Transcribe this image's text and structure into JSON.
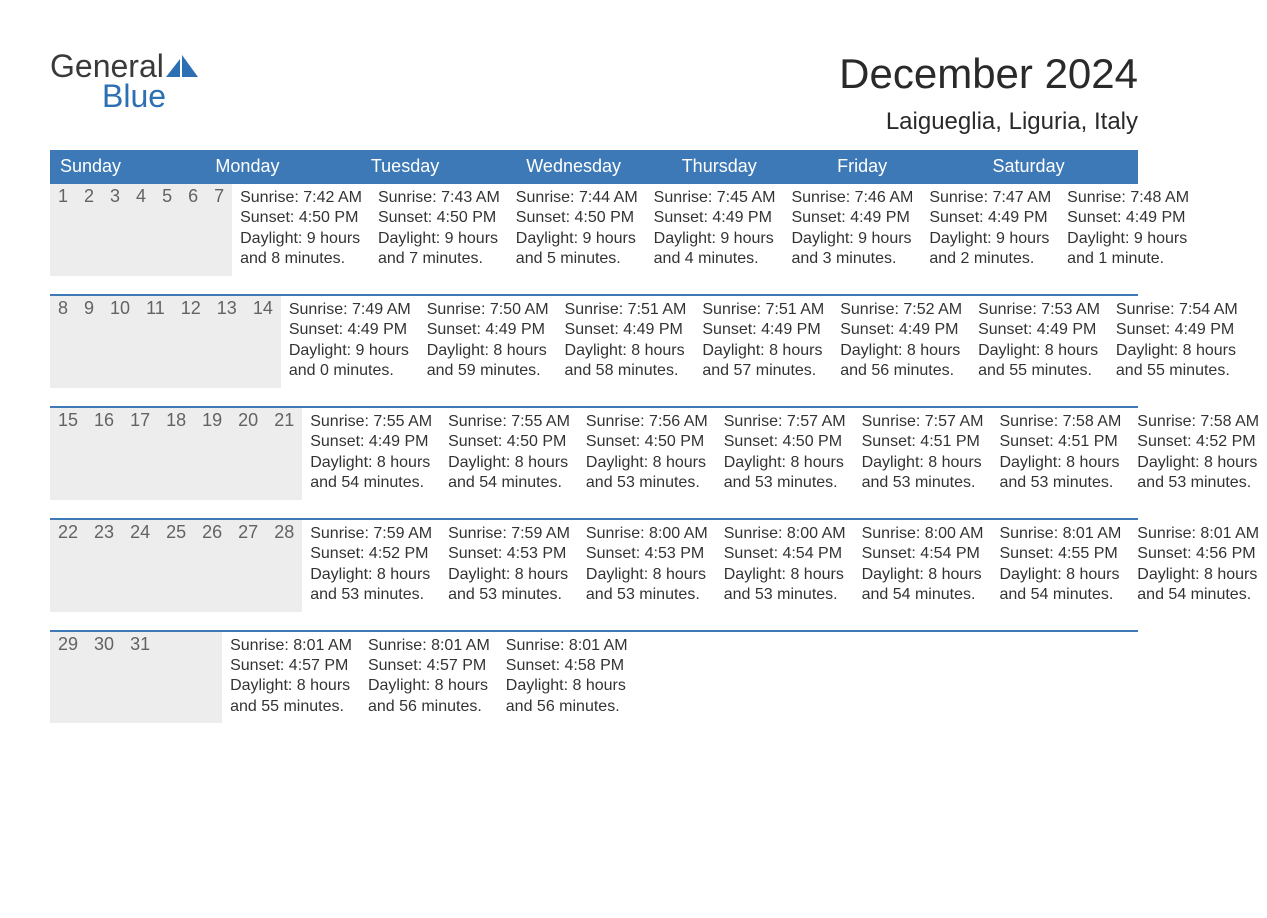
{
  "logo": {
    "word1": "General",
    "word2": "Blue"
  },
  "title": "December 2024",
  "location": "Laigueglia, Liguria, Italy",
  "colors": {
    "header_bg": "#3d79b6",
    "header_text": "#ffffff",
    "daynum_bg": "#ededed",
    "daynum_text": "#636363",
    "rule": "#3d79b6",
    "body_text": "#333333",
    "page_bg": "#ffffff",
    "logo_gray": "#3a3a3a",
    "logo_blue": "#2d6fb3"
  },
  "day_names": [
    "Sunday",
    "Monday",
    "Tuesday",
    "Wednesday",
    "Thursday",
    "Friday",
    "Saturday"
  ],
  "weeks": [
    [
      {
        "n": "1",
        "sr": "Sunrise: 7:42 AM",
        "ss": "Sunset: 4:50 PM",
        "d1": "Daylight: 9 hours",
        "d2": "and 8 minutes."
      },
      {
        "n": "2",
        "sr": "Sunrise: 7:43 AM",
        "ss": "Sunset: 4:50 PM",
        "d1": "Daylight: 9 hours",
        "d2": "and 7 minutes."
      },
      {
        "n": "3",
        "sr": "Sunrise: 7:44 AM",
        "ss": "Sunset: 4:50 PM",
        "d1": "Daylight: 9 hours",
        "d2": "and 5 minutes."
      },
      {
        "n": "4",
        "sr": "Sunrise: 7:45 AM",
        "ss": "Sunset: 4:49 PM",
        "d1": "Daylight: 9 hours",
        "d2": "and 4 minutes."
      },
      {
        "n": "5",
        "sr": "Sunrise: 7:46 AM",
        "ss": "Sunset: 4:49 PM",
        "d1": "Daylight: 9 hours",
        "d2": "and 3 minutes."
      },
      {
        "n": "6",
        "sr": "Sunrise: 7:47 AM",
        "ss": "Sunset: 4:49 PM",
        "d1": "Daylight: 9 hours",
        "d2": "and 2 minutes."
      },
      {
        "n": "7",
        "sr": "Sunrise: 7:48 AM",
        "ss": "Sunset: 4:49 PM",
        "d1": "Daylight: 9 hours",
        "d2": "and 1 minute."
      }
    ],
    [
      {
        "n": "8",
        "sr": "Sunrise: 7:49 AM",
        "ss": "Sunset: 4:49 PM",
        "d1": "Daylight: 9 hours",
        "d2": "and 0 minutes."
      },
      {
        "n": "9",
        "sr": "Sunrise: 7:50 AM",
        "ss": "Sunset: 4:49 PM",
        "d1": "Daylight: 8 hours",
        "d2": "and 59 minutes."
      },
      {
        "n": "10",
        "sr": "Sunrise: 7:51 AM",
        "ss": "Sunset: 4:49 PM",
        "d1": "Daylight: 8 hours",
        "d2": "and 58 minutes."
      },
      {
        "n": "11",
        "sr": "Sunrise: 7:51 AM",
        "ss": "Sunset: 4:49 PM",
        "d1": "Daylight: 8 hours",
        "d2": "and 57 minutes."
      },
      {
        "n": "12",
        "sr": "Sunrise: 7:52 AM",
        "ss": "Sunset: 4:49 PM",
        "d1": "Daylight: 8 hours",
        "d2": "and 56 minutes."
      },
      {
        "n": "13",
        "sr": "Sunrise: 7:53 AM",
        "ss": "Sunset: 4:49 PM",
        "d1": "Daylight: 8 hours",
        "d2": "and 55 minutes."
      },
      {
        "n": "14",
        "sr": "Sunrise: 7:54 AM",
        "ss": "Sunset: 4:49 PM",
        "d1": "Daylight: 8 hours",
        "d2": "and 55 minutes."
      }
    ],
    [
      {
        "n": "15",
        "sr": "Sunrise: 7:55 AM",
        "ss": "Sunset: 4:49 PM",
        "d1": "Daylight: 8 hours",
        "d2": "and 54 minutes."
      },
      {
        "n": "16",
        "sr": "Sunrise: 7:55 AM",
        "ss": "Sunset: 4:50 PM",
        "d1": "Daylight: 8 hours",
        "d2": "and 54 minutes."
      },
      {
        "n": "17",
        "sr": "Sunrise: 7:56 AM",
        "ss": "Sunset: 4:50 PM",
        "d1": "Daylight: 8 hours",
        "d2": "and 53 minutes."
      },
      {
        "n": "18",
        "sr": "Sunrise: 7:57 AM",
        "ss": "Sunset: 4:50 PM",
        "d1": "Daylight: 8 hours",
        "d2": "and 53 minutes."
      },
      {
        "n": "19",
        "sr": "Sunrise: 7:57 AM",
        "ss": "Sunset: 4:51 PM",
        "d1": "Daylight: 8 hours",
        "d2": "and 53 minutes."
      },
      {
        "n": "20",
        "sr": "Sunrise: 7:58 AM",
        "ss": "Sunset: 4:51 PM",
        "d1": "Daylight: 8 hours",
        "d2": "and 53 minutes."
      },
      {
        "n": "21",
        "sr": "Sunrise: 7:58 AM",
        "ss": "Sunset: 4:52 PM",
        "d1": "Daylight: 8 hours",
        "d2": "and 53 minutes."
      }
    ],
    [
      {
        "n": "22",
        "sr": "Sunrise: 7:59 AM",
        "ss": "Sunset: 4:52 PM",
        "d1": "Daylight: 8 hours",
        "d2": "and 53 minutes."
      },
      {
        "n": "23",
        "sr": "Sunrise: 7:59 AM",
        "ss": "Sunset: 4:53 PM",
        "d1": "Daylight: 8 hours",
        "d2": "and 53 minutes."
      },
      {
        "n": "24",
        "sr": "Sunrise: 8:00 AM",
        "ss": "Sunset: 4:53 PM",
        "d1": "Daylight: 8 hours",
        "d2": "and 53 minutes."
      },
      {
        "n": "25",
        "sr": "Sunrise: 8:00 AM",
        "ss": "Sunset: 4:54 PM",
        "d1": "Daylight: 8 hours",
        "d2": "and 53 minutes."
      },
      {
        "n": "26",
        "sr": "Sunrise: 8:00 AM",
        "ss": "Sunset: 4:54 PM",
        "d1": "Daylight: 8 hours",
        "d2": "and 54 minutes."
      },
      {
        "n": "27",
        "sr": "Sunrise: 8:01 AM",
        "ss": "Sunset: 4:55 PM",
        "d1": "Daylight: 8 hours",
        "d2": "and 54 minutes."
      },
      {
        "n": "28",
        "sr": "Sunrise: 8:01 AM",
        "ss": "Sunset: 4:56 PM",
        "d1": "Daylight: 8 hours",
        "d2": "and 54 minutes."
      }
    ],
    [
      {
        "n": "29",
        "sr": "Sunrise: 8:01 AM",
        "ss": "Sunset: 4:57 PM",
        "d1": "Daylight: 8 hours",
        "d2": "and 55 minutes."
      },
      {
        "n": "30",
        "sr": "Sunrise: 8:01 AM",
        "ss": "Sunset: 4:57 PM",
        "d1": "Daylight: 8 hours",
        "d2": "and 56 minutes."
      },
      {
        "n": "31",
        "sr": "Sunrise: 8:01 AM",
        "ss": "Sunset: 4:58 PM",
        "d1": "Daylight: 8 hours",
        "d2": "and 56 minutes."
      },
      {
        "n": "",
        "sr": "",
        "ss": "",
        "d1": "",
        "d2": ""
      },
      {
        "n": "",
        "sr": "",
        "ss": "",
        "d1": "",
        "d2": ""
      },
      {
        "n": "",
        "sr": "",
        "ss": "",
        "d1": "",
        "d2": ""
      },
      {
        "n": "",
        "sr": "",
        "ss": "",
        "d1": "",
        "d2": ""
      }
    ]
  ]
}
